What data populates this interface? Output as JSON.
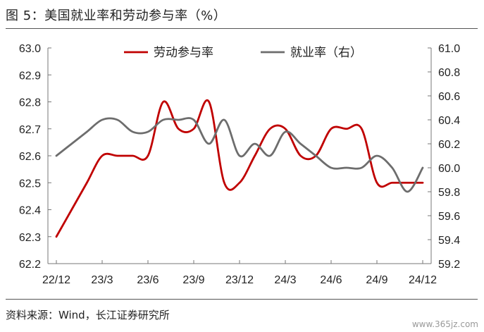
{
  "title": "图 5：美国就业率和劳动参与率（%）",
  "source": "资料来源：Wind，长江证券研究所",
  "watermark": "www.365jz.com",
  "chart_data": {
    "type": "line",
    "x": [
      "22/12",
      "23/1",
      "23/2",
      "23/3",
      "23/4",
      "23/5",
      "23/6",
      "23/7",
      "23/8",
      "23/9",
      "23/10",
      "23/11",
      "23/12",
      "24/1",
      "24/2",
      "24/3",
      "24/4",
      "24/5",
      "24/6",
      "24/7",
      "24/8",
      "24/9",
      "24/10",
      "24/11",
      "24/12"
    ],
    "x_tick_labels": [
      "22/12",
      "23/3",
      "23/6",
      "23/9",
      "23/12",
      "24/3",
      "24/6",
      "24/9",
      "24/12"
    ],
    "series": [
      {
        "name": "劳动参与率",
        "axis": "left",
        "color": "#c00000",
        "values": [
          62.3,
          62.4,
          62.5,
          62.6,
          62.6,
          62.6,
          62.6,
          62.8,
          62.7,
          62.7,
          62.8,
          62.5,
          62.5,
          62.6,
          62.7,
          62.7,
          62.6,
          62.6,
          62.7,
          62.7,
          62.7,
          62.5,
          62.5,
          62.5,
          62.5
        ]
      },
      {
        "name": "就业率（右）",
        "axis": "right",
        "color": "#6d6d6d",
        "values": [
          60.1,
          60.2,
          60.3,
          60.4,
          60.4,
          60.3,
          60.3,
          60.4,
          60.4,
          60.4,
          60.2,
          60.4,
          60.1,
          60.2,
          60.1,
          60.3,
          60.2,
          60.1,
          60.0,
          60.0,
          60.0,
          60.1,
          60.0,
          59.8,
          60.0
        ]
      }
    ],
    "y_left": {
      "min": 62.2,
      "max": 63.0,
      "ticks": [
        "62.2",
        "62.3",
        "62.4",
        "62.5",
        "62.6",
        "62.7",
        "62.8",
        "62.9",
        "63.0"
      ]
    },
    "y_right": {
      "min": 59.2,
      "max": 61.0,
      "ticks": [
        "59.2",
        "59.4",
        "59.6",
        "59.8",
        "60.0",
        "60.2",
        "60.4",
        "60.6",
        "60.8",
        "61.0"
      ]
    },
    "grid": false,
    "legend_position": "top"
  }
}
